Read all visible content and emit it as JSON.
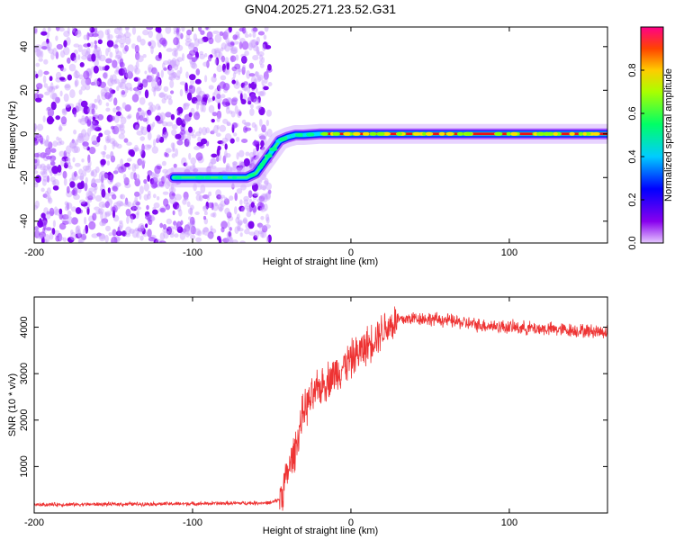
{
  "title": "GN04.2025.271.23.52.G31",
  "chart_data": [
    {
      "type": "heatmap",
      "name": "spectrogram",
      "xlabel": "Height of straight line (km)",
      "ylabel": "Frequency (Hz)",
      "xlim": [
        -200,
        162
      ],
      "ylim": [
        -50,
        49
      ],
      "xticks": [
        "-200",
        "-100",
        "0",
        "100"
      ],
      "yticks": [
        "-40",
        "-20",
        "0",
        "20",
        "40"
      ],
      "noise_region_x": [
        -200,
        -51
      ],
      "track": {
        "x": [
          -112,
          -66,
          -60,
          -55,
          -50,
          -45,
          -40,
          -35,
          -30,
          -20,
          0,
          20,
          40,
          60,
          80,
          100,
          120,
          162
        ],
        "y": [
          -20,
          -20,
          -18,
          -13,
          -8,
          -3,
          -1.5,
          -0.5,
          -0.5,
          0,
          0,
          0,
          0,
          0,
          0,
          0,
          0,
          0
        ]
      },
      "colorbar": {
        "label": "Normalized spectral amplitude",
        "range": [
          0,
          1
        ],
        "ticks": [
          "0.0",
          "0.2",
          "0.4",
          "0.6",
          "0.8"
        ]
      }
    },
    {
      "type": "line",
      "name": "snr",
      "xlabel": "Height of straight line (km)",
      "ylabel": "SNR (10 * v/v)",
      "xlim": [
        -200,
        162
      ],
      "ylim": [
        0,
        4650
      ],
      "xticks": [
        "-200",
        "-100",
        "0",
        "100"
      ],
      "yticks": [
        "1000",
        "2000",
        "3000",
        "4000"
      ],
      "color": "#ee3333",
      "trend": {
        "x": [
          -200,
          -100,
          -50,
          -45,
          -35,
          -30,
          -20,
          -10,
          0,
          10,
          20,
          30,
          40,
          60,
          80,
          100,
          130,
          162
        ],
        "y": [
          180,
          200,
          220,
          300,
          1400,
          2200,
          2700,
          3000,
          3300,
          3600,
          3950,
          4150,
          4200,
          4150,
          4050,
          4000,
          3950,
          3900
        ]
      }
    }
  ]
}
